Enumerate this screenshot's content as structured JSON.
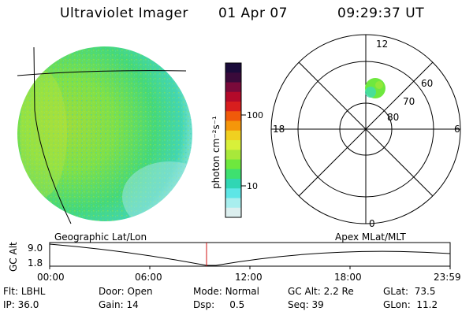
{
  "header": {
    "instrument": "Ultraviolet Imager",
    "date": "01 Apr 07",
    "time": "09:29:37 UT"
  },
  "colorbar": {
    "label": "photon cm⁻²s⁻¹",
    "ticks": [
      "100",
      "10"
    ],
    "colors": [
      "#1a0b3a",
      "#3a0a3a",
      "#7a0a3a",
      "#b40a2a",
      "#d81e1e",
      "#f05a0a",
      "#f5960a",
      "#f0d020",
      "#d8f03a",
      "#a8e83a",
      "#6ee83e",
      "#3ee070",
      "#30d6b4",
      "#5ee6e6",
      "#a8eeee",
      "#dcefef"
    ]
  },
  "polar": {
    "mlt_labels": [
      "12",
      "18",
      "6",
      "0"
    ],
    "lat_labels": [
      "80",
      "70",
      "60"
    ]
  },
  "timeline": {
    "left_label": "Geographic Lat/Lon",
    "right_label": "Apex MLat/MLT",
    "axis_title": "GC Alt",
    "y_ticks": [
      "9.0",
      "1.8"
    ],
    "x_ticks": [
      "00:00",
      "06:00",
      "12:00",
      "18:00",
      "23:59"
    ]
  },
  "info": {
    "row1": [
      {
        "key": "Flt:",
        "value": "LBHL"
      },
      {
        "key": "Door:",
        "value": "Open"
      },
      {
        "key": "Mode:",
        "value": "Normal"
      },
      {
        "key": "GC Alt:",
        "value": "2.2 Re"
      },
      {
        "key": "GLat:",
        "value": "73.5"
      }
    ],
    "row2": [
      {
        "key": "IP:",
        "value": "36.0"
      },
      {
        "key": "Gain:",
        "value": "14"
      },
      {
        "key": "Dsp:",
        "value": "0.5"
      },
      {
        "key": "Seq:",
        "value": "39"
      },
      {
        "key": "GLon:",
        "value": "11.2"
      }
    ]
  }
}
